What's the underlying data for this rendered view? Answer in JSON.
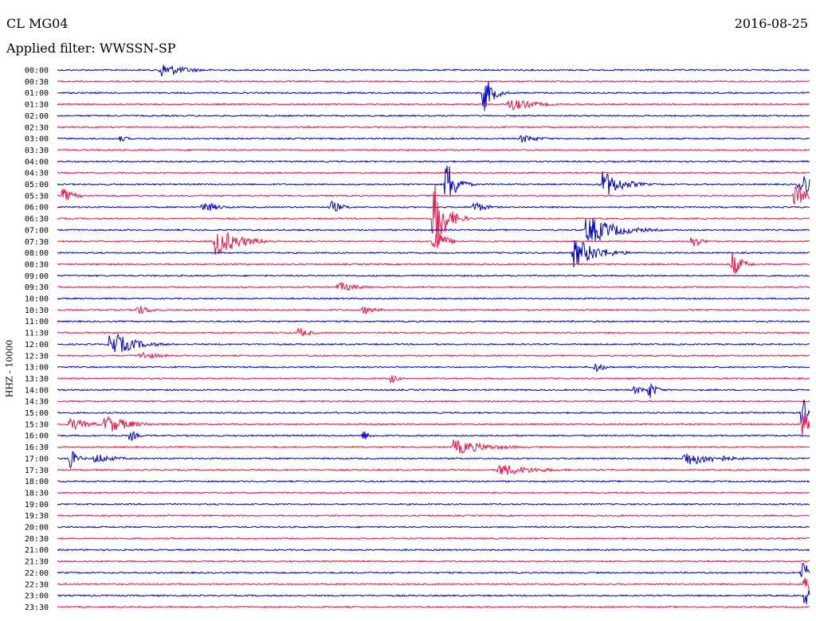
{
  "header": {
    "station": "CL MG04",
    "date": "2016-08-25",
    "filter": "Applied filter: WWSSN-SP"
  },
  "chart_data": {
    "type": "line",
    "title": "CL MG04",
    "subtitle": "Applied filter: WWSSN-SP",
    "ylabel": "HHZ - 10000",
    "xlabel": "",
    "grid": false,
    "time_labels": [
      "00:00",
      "00:30",
      "01:00",
      "01:30",
      "02:00",
      "02:30",
      "03:00",
      "03:30",
      "04:00",
      "04:30",
      "05:00",
      "05:30",
      "06:00",
      "06:30",
      "07:00",
      "07:30",
      "08:00",
      "08:30",
      "09:00",
      "09:30",
      "10:00",
      "10:30",
      "11:00",
      "11:30",
      "12:00",
      "12:30",
      "13:00",
      "13:30",
      "14:00",
      "14:30",
      "15:00",
      "15:30",
      "16:00",
      "16:30",
      "17:00",
      "17:30",
      "18:00",
      "18:30",
      "19:00",
      "19:30",
      "20:00",
      "20:30",
      "21:00",
      "21:30",
      "22:00",
      "22:30",
      "23:00",
      "23:30"
    ],
    "colors": {
      "even_rows": "#0000cc",
      "odd_rows": "#ee1144"
    },
    "minutes_per_row": 30,
    "events": [
      {
        "row": 0,
        "minute": 4.1,
        "amp": 0.7,
        "dur": 1.0
      },
      {
        "row": 2,
        "minute": 17.0,
        "amp": 1.8,
        "dur": 0.4
      },
      {
        "row": 3,
        "minute": 18.0,
        "amp": 0.6,
        "dur": 1.1
      },
      {
        "row": 6,
        "minute": 18.5,
        "amp": 0.4,
        "dur": 0.8
      },
      {
        "row": 6,
        "minute": 2.5,
        "amp": 0.3,
        "dur": 0.4
      },
      {
        "row": 10,
        "minute": 15.5,
        "amp": 2.5,
        "dur": 0.4
      },
      {
        "row": 10,
        "minute": 21.7,
        "amp": 1.4,
        "dur": 0.8
      },
      {
        "row": 10,
        "minute": 29.6,
        "amp": 1.5,
        "dur": 0.5
      },
      {
        "row": 11,
        "minute": 0.2,
        "amp": 0.7,
        "dur": 0.5
      },
      {
        "row": 11,
        "minute": 29.4,
        "amp": 1.0,
        "dur": 0.7
      },
      {
        "row": 12,
        "minute": 5.8,
        "amp": 0.6,
        "dur": 0.6
      },
      {
        "row": 12,
        "minute": 10.9,
        "amp": 0.6,
        "dur": 0.5
      },
      {
        "row": 12,
        "minute": 16.6,
        "amp": 0.6,
        "dur": 0.5
      },
      {
        "row": 13,
        "minute": 15.0,
        "amp": 3.5,
        "dur": 0.5
      },
      {
        "row": 14,
        "minute": 21.1,
        "amp": 1.4,
        "dur": 1.2
      },
      {
        "row": 15,
        "minute": 6.3,
        "amp": 1.4,
        "dur": 1.0
      },
      {
        "row": 15,
        "minute": 15.0,
        "amp": 1.7,
        "dur": 0.4
      },
      {
        "row": 15,
        "minute": 25.3,
        "amp": 1.0,
        "dur": 0.3
      },
      {
        "row": 16,
        "minute": 20.6,
        "amp": 1.4,
        "dur": 1.0
      },
      {
        "row": 17,
        "minute": 26.9,
        "amp": 1.3,
        "dur": 0.4
      },
      {
        "row": 19,
        "minute": 11.2,
        "amp": 0.5,
        "dur": 0.8
      },
      {
        "row": 21,
        "minute": 3.2,
        "amp": 0.5,
        "dur": 0.6
      },
      {
        "row": 21,
        "minute": 12.2,
        "amp": 0.4,
        "dur": 0.6
      },
      {
        "row": 23,
        "minute": 9.6,
        "amp": 0.5,
        "dur": 0.5
      },
      {
        "row": 24,
        "minute": 2.1,
        "amp": 1.2,
        "dur": 1.0
      },
      {
        "row": 25,
        "minute": 3.3,
        "amp": 0.4,
        "dur": 0.9
      },
      {
        "row": 26,
        "minute": 21.4,
        "amp": 0.6,
        "dur": 0.4
      },
      {
        "row": 27,
        "minute": 13.3,
        "amp": 0.5,
        "dur": 0.3
      },
      {
        "row": 28,
        "minute": 23.0,
        "amp": 0.4,
        "dur": 0.6
      },
      {
        "row": 28,
        "minute": 23.6,
        "amp": 0.9,
        "dur": 0.3
      },
      {
        "row": 30,
        "minute": 29.7,
        "amp": 1.4,
        "dur": 0.6
      },
      {
        "row": 31,
        "minute": 0.5,
        "amp": 0.6,
        "dur": 0.8
      },
      {
        "row": 31,
        "minute": 1.9,
        "amp": 0.9,
        "dur": 1.0
      },
      {
        "row": 31,
        "minute": 29.7,
        "amp": 1.4,
        "dur": 0.6
      },
      {
        "row": 32,
        "minute": 2.9,
        "amp": 0.6,
        "dur": 0.3
      },
      {
        "row": 32,
        "minute": 12.2,
        "amp": 0.5,
        "dur": 0.3
      },
      {
        "row": 33,
        "minute": 15.8,
        "amp": 0.7,
        "dur": 1.5
      },
      {
        "row": 34,
        "minute": 0.5,
        "amp": 1.0,
        "dur": 0.3
      },
      {
        "row": 34,
        "minute": 1.5,
        "amp": 0.5,
        "dur": 0.8
      },
      {
        "row": 34,
        "minute": 25.0,
        "amp": 0.7,
        "dur": 1.4
      },
      {
        "row": 34,
        "minute": 26.5,
        "amp": 0.3,
        "dur": 0.5
      },
      {
        "row": 35,
        "minute": 17.6,
        "amp": 0.6,
        "dur": 1.5
      },
      {
        "row": 44,
        "minute": 29.7,
        "amp": 1.3,
        "dur": 0.3
      },
      {
        "row": 45,
        "minute": 29.8,
        "amp": 1.0,
        "dur": 0.3
      },
      {
        "row": 46,
        "minute": 29.8,
        "amp": 1.0,
        "dur": 0.3
      }
    ]
  }
}
